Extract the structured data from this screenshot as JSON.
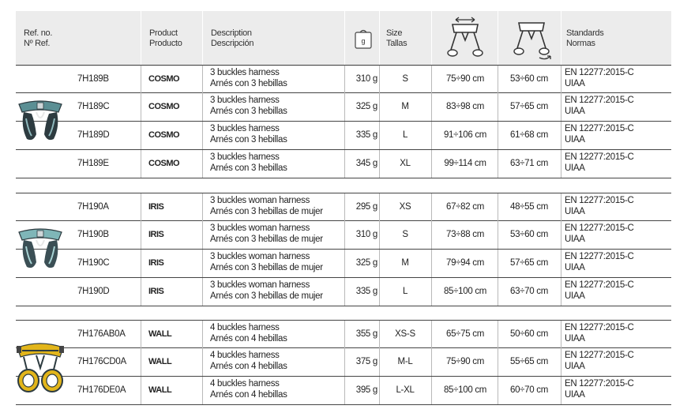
{
  "header": {
    "ref": [
      "Ref. no.",
      "Nº Ref."
    ],
    "product": [
      "Product",
      "Producto"
    ],
    "description": [
      "Description",
      "Descripción"
    ],
    "weight_icon": "weight-icon",
    "size": [
      "Size",
      "Tallas"
    ],
    "waist_icon": "waist-belt-icon",
    "leg_icon": "leg-loop-icon",
    "standards": [
      "Standards",
      "Normas"
    ]
  },
  "groups": [
    {
      "image": "cosmo-harness-image",
      "rows": [
        {
          "ref": "7H189B",
          "product": "COSMO",
          "desc1": "3 buckles harness",
          "desc2": "Arnés con 3 hebillas",
          "weight": "310 g",
          "size": "S",
          "waist": "75÷90 cm",
          "legs": "53÷60 cm",
          "std1": "EN 12277:2015-C",
          "std2": "UIAA"
        },
        {
          "ref": "7H189C",
          "product": "COSMO",
          "desc1": "3 buckles harness",
          "desc2": "Arnés con 3 hebillas",
          "weight": "325 g",
          "size": "M",
          "waist": "83÷98 cm",
          "legs": "57÷65 cm",
          "std1": "EN 12277:2015-C",
          "std2": "UIAA"
        },
        {
          "ref": "7H189D",
          "product": "COSMO",
          "desc1": "3 buckles harness",
          "desc2": "Arnés con 3 hebillas",
          "weight": "335 g",
          "size": "L",
          "waist": "91÷106 cm",
          "legs": "61÷68 cm",
          "std1": "EN 12277:2015-C",
          "std2": "UIAA"
        },
        {
          "ref": "7H189E",
          "product": "COSMO",
          "desc1": "3 buckles harness",
          "desc2": "Arnés con 3 hebillas",
          "weight": "345 g",
          "size": "XL",
          "waist": "99÷114 cm",
          "legs": "63÷71 cm",
          "std1": "EN 12277:2015-C",
          "std2": "UIAA"
        }
      ]
    },
    {
      "image": "iris-harness-image",
      "rows": [
        {
          "ref": "7H190A",
          "product": "IRIS",
          "desc1": "3 buckles woman harness",
          "desc2": "Arnés con 3 hebillas de mujer",
          "weight": "295 g",
          "size": "XS",
          "waist": "67÷82 cm",
          "legs": "48÷55 cm",
          "std1": "EN 12277:2015-C",
          "std2": "UIAA"
        },
        {
          "ref": "7H190B",
          "product": "IRIS",
          "desc1": "3 buckles woman harness",
          "desc2": "Arnés con 3 hebillas de mujer",
          "weight": "310 g",
          "size": "S",
          "waist": "73÷88 cm",
          "legs": "53÷60 cm",
          "std1": "EN 12277:2015-C",
          "std2": "UIAA"
        },
        {
          "ref": "7H190C",
          "product": "IRIS",
          "desc1": "3 buckles woman harness",
          "desc2": "Arnés con 3 hebillas de mujer",
          "weight": "325 g",
          "size": "M",
          "waist": "79÷94 cm",
          "legs": "57÷65 cm",
          "std1": "EN 12277:2015-C",
          "std2": "UIAA"
        },
        {
          "ref": "7H190D",
          "product": "IRIS",
          "desc1": "3 buckles woman harness",
          "desc2": "Arnés con 3 hebillas de mujer",
          "weight": "335 g",
          "size": "L",
          "waist": "85÷100 cm",
          "legs": "63÷70 cm",
          "std1": "EN 12277:2015-C",
          "std2": "UIAA"
        }
      ]
    },
    {
      "image": "wall-harness-image",
      "rows": [
        {
          "ref": "7H176AB0A",
          "product": "WALL",
          "desc1": "4 buckles harness",
          "desc2": "Arnés con 4 hebillas",
          "weight": "355 g",
          "size": "XS-S",
          "waist": "65÷75 cm",
          "legs": "50÷60 cm",
          "std1": "EN 12277:2015-C",
          "std2": "UIAA"
        },
        {
          "ref": "7H176CD0A",
          "product": "WALL",
          "desc1": "4 buckles harness",
          "desc2": "Arnés con 4 hebillas",
          "weight": "375 g",
          "size": "M-L",
          "waist": "75÷90 cm",
          "legs": "55÷65 cm",
          "std1": "EN 12277:2015-C",
          "std2": "UIAA"
        },
        {
          "ref": "7H176DE0A",
          "product": "WALL",
          "desc1": "4 buckles harness",
          "desc2": "Arnés con 4 hebillas",
          "weight": "395 g",
          "size": "L-XL",
          "waist": "85÷100 cm",
          "legs": "60÷70 cm",
          "std1": "EN 12277:2015-C",
          "std2": "UIAA"
        }
      ]
    }
  ],
  "colors": {
    "header_bg": "#ececec",
    "cosmo_strap": "#5b8f94",
    "iris_strap": "#7fb6b8",
    "wall_strap": "#e2b51a",
    "dark_pad": "#2d3b40"
  }
}
